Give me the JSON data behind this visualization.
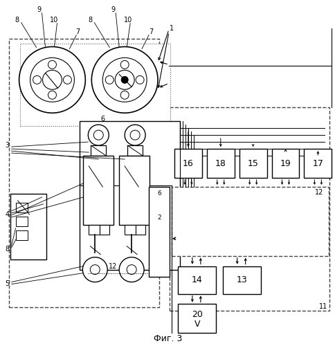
{
  "title": "Фиг. 3",
  "bg_color": "#ffffff"
}
